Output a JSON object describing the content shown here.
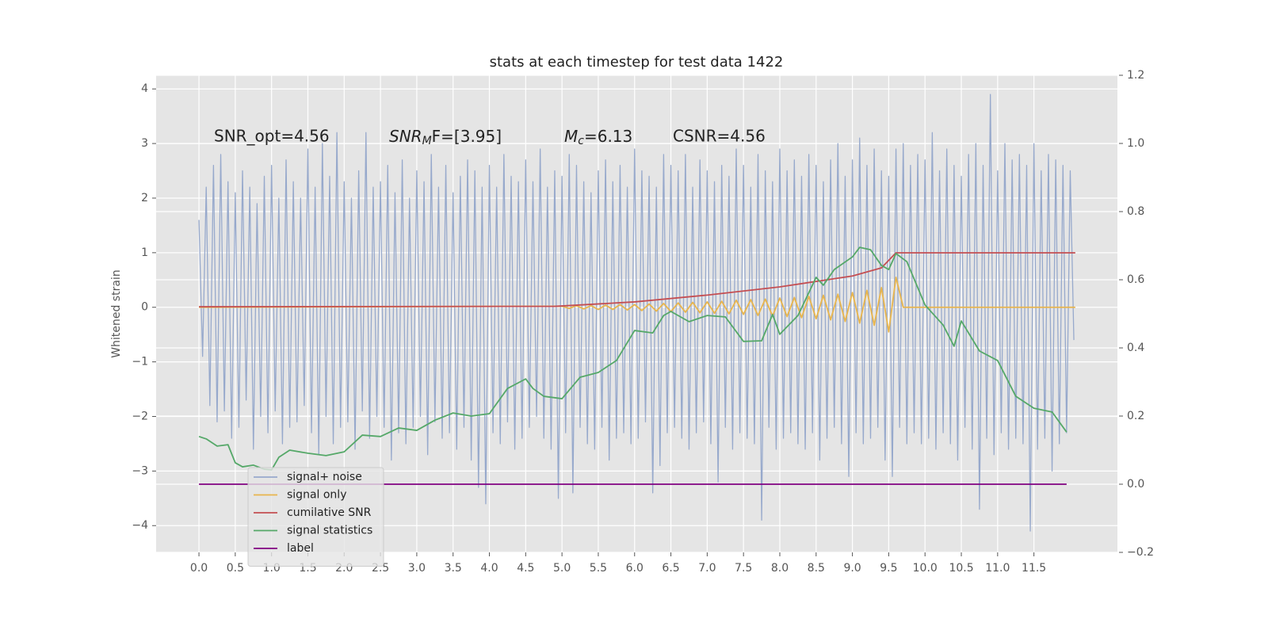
{
  "chart_data": {
    "type": "line",
    "title": "stats at each timestep for test data 1422",
    "ylabel": "Whitened strain",
    "xlim": [
      -0.59,
      12.65
    ],
    "ylim": [
      -4.49,
      4.25
    ],
    "y2lim": [
      -0.2,
      1.2
    ],
    "grid": true,
    "legend": "lower left",
    "xticks": [
      {
        "value": 0,
        "label": "0.0"
      },
      0.5,
      {
        "value": 1,
        "label": "1.0"
      },
      1.5,
      {
        "value": 2,
        "label": "2.0"
      },
      2.5,
      {
        "value": 3,
        "label": "3.0"
      },
      3.5,
      {
        "value": 4,
        "label": "4.0"
      },
      4.5,
      {
        "value": 5,
        "label": "5.0"
      },
      5.5,
      {
        "value": 6,
        "label": "6.0"
      },
      6.5,
      {
        "value": 7,
        "label": "7.0"
      },
      7.5,
      {
        "value": 8,
        "label": "8.0"
      },
      8.5,
      {
        "value": 9,
        "label": "9.0"
      },
      9.5,
      {
        "value": 10,
        "label": "10.0"
      },
      10.5,
      {
        "value": 11,
        "label": "11.0"
      },
      11.5
    ],
    "yticks": [
      {
        "value": -4,
        "label": "−4"
      },
      {
        "value": -3,
        "label": "−3"
      },
      {
        "value": -2,
        "label": "−2"
      },
      {
        "value": -1,
        "label": "−1"
      },
      0,
      1,
      2,
      3,
      4
    ],
    "y2ticks": [
      {
        "value": -0.2,
        "label": "−0.2"
      },
      {
        "value": 0,
        "label": "0.0"
      },
      0.2,
      0.4,
      0.6,
      0.8,
      {
        "value": 1,
        "label": "1.0"
      },
      1.2
    ],
    "annotations": [
      {
        "text": "SNR_opt=4.56"
      },
      {
        "base": "SNR",
        "sub": "M",
        "rest": "F=[3.95]"
      },
      {
        "base": "M",
        "sub": "c",
        "rest": "=6.13"
      },
      {
        "text": "CSNR=4.56"
      }
    ],
    "series": [
      {
        "name": "signal+ noise",
        "color": "#97a9cc",
        "axis": "y",
        "x": [
          0,
          0.05,
          0.1,
          0.15,
          0.2,
          0.25,
          0.3,
          0.35,
          0.4,
          0.45,
          0.5,
          0.55,
          0.6,
          0.65,
          0.7,
          0.75,
          0.8,
          0.85,
          0.9,
          0.95,
          1,
          1.05,
          1.1,
          1.15,
          1.2,
          1.25,
          1.3,
          1.35,
          1.4,
          1.45,
          1.5,
          1.55,
          1.6,
          1.65,
          1.7,
          1.75,
          1.8,
          1.85,
          1.9,
          1.95,
          2,
          2.05,
          2.1,
          2.15,
          2.2,
          2.25,
          2.3,
          2.35,
          2.4,
          2.45,
          2.5,
          2.55,
          2.6,
          2.65,
          2.7,
          2.75,
          2.8,
          2.85,
          2.9,
          2.95,
          3,
          3.05,
          3.1,
          3.15,
          3.2,
          3.25,
          3.3,
          3.35,
          3.4,
          3.45,
          3.5,
          3.55,
          3.6,
          3.65,
          3.7,
          3.75,
          3.8,
          3.85,
          3.9,
          3.95,
          4,
          4.05,
          4.1,
          4.15,
          4.2,
          4.25,
          4.3,
          4.35,
          4.4,
          4.45,
          4.5,
          4.55,
          4.6,
          4.65,
          4.7,
          4.75,
          4.8,
          4.85,
          4.9,
          4.95,
          5,
          5.05,
          5.1,
          5.15,
          5.2,
          5.25,
          5.3,
          5.35,
          5.4,
          5.45,
          5.5,
          5.55,
          5.6,
          5.65,
          5.7,
          5.75,
          5.8,
          5.85,
          5.9,
          5.95,
          6,
          6.05,
          6.1,
          6.15,
          6.2,
          6.25,
          6.3,
          6.35,
          6.4,
          6.45,
          6.5,
          6.55,
          6.6,
          6.65,
          6.7,
          6.75,
          6.8,
          6.85,
          6.9,
          6.95,
          7,
          7.05,
          7.1,
          7.15,
          7.2,
          7.25,
          7.3,
          7.35,
          7.4,
          7.45,
          7.5,
          7.55,
          7.6,
          7.65,
          7.7,
          7.75,
          7.8,
          7.85,
          7.9,
          7.95,
          8,
          8.05,
          8.1,
          8.15,
          8.2,
          8.25,
          8.3,
          8.35,
          8.4,
          8.45,
          8.5,
          8.55,
          8.6,
          8.65,
          8.7,
          8.75,
          8.8,
          8.85,
          8.9,
          8.95,
          9,
          9.05,
          9.1,
          9.15,
          9.2,
          9.25,
          9.3,
          9.35,
          9.4,
          9.45,
          9.5,
          9.55,
          9.6,
          9.65,
          9.7,
          9.75,
          9.8,
          9.85,
          9.9,
          9.95,
          10,
          10.05,
          10.1,
          10.15,
          10.2,
          10.25,
          10.3,
          10.35,
          10.4,
          10.45,
          10.5,
          10.55,
          10.6,
          10.65,
          10.7,
          10.75,
          10.8,
          10.85,
          10.9,
          10.95,
          11,
          11.05,
          11.1,
          11.15,
          11.2,
          11.25,
          11.3,
          11.35,
          11.4,
          11.45,
          11.5,
          11.55,
          11.6,
          11.65,
          11.7,
          11.75,
          11.8,
          11.85,
          11.9,
          11.95,
          12,
          12.05
        ],
        "values": [
          1.6,
          -0.9,
          2.2,
          -1.8,
          2.6,
          -2.1,
          2.8,
          -1.9,
          2.3,
          -2.4,
          2.1,
          -2.2,
          2.5,
          -1.7,
          2.2,
          -2.6,
          1.9,
          -2.0,
          2.4,
          -2.3,
          2.6,
          -1.9,
          2.0,
          -2.5,
          2.7,
          -2.2,
          2.3,
          -2.1,
          2.0,
          -1.8,
          2.9,
          -2.3,
          2.2,
          -2.7,
          3.0,
          -2.0,
          2.4,
          -2.5,
          3.2,
          -2.2,
          2.3,
          -2.1,
          2.0,
          -2.6,
          2.5,
          -1.9,
          3.2,
          -2.4,
          2.2,
          -2.0,
          2.3,
          -2.2,
          2.6,
          -2.8,
          2.1,
          -2.3,
          2.7,
          -2.5,
          2.0,
          -2.2,
          2.5,
          -2.0,
          2.3,
          -2.7,
          2.8,
          -2.1,
          2.2,
          -2.4,
          2.6,
          -2.3,
          2.1,
          -2.6,
          2.4,
          -2.2,
          2.7,
          -2.8,
          2.5,
          -3.3,
          2.2,
          -3.6,
          2.6,
          -2.3,
          2.2,
          -2.5,
          2.8,
          -2.1,
          2.4,
          -2.6,
          2.3,
          -2.4,
          2.7,
          -2.2,
          2.3,
          -2.0,
          2.9,
          -2.4,
          2.2,
          -2.6,
          2.5,
          -3.5,
          2.4,
          -2.3,
          2.8,
          -3.4,
          2.6,
          -2.2,
          2.3,
          -2.5,
          2.1,
          -2.6,
          2.5,
          -2.2,
          2.7,
          -2.8,
          2.3,
          -2.4,
          2.6,
          -2.3,
          2.2,
          -2.5,
          2.9,
          -2.4,
          2.5,
          -2.1,
          2.4,
          -3.4,
          2.2,
          -2.9,
          2.8,
          -2.3,
          2.6,
          -2.2,
          2.5,
          -2.4,
          2.8,
          -2.6,
          2.2,
          -2.3,
          2.7,
          -2.1,
          2.5,
          -2.5,
          2.3,
          -3.2,
          2.6,
          -2.2,
          2.4,
          -2.6,
          2.9,
          -2.3,
          2.6,
          -2.4,
          2.2,
          -2.5,
          2.8,
          -3.9,
          2.5,
          -2.2,
          2.3,
          -2.6,
          2.9,
          -2.4,
          2.5,
          -2.3,
          2.7,
          -2.5,
          2.4,
          -2.6,
          2.8,
          -2.3,
          2.6,
          -2.8,
          2.3,
          -2.4,
          2.7,
          -2.2,
          3.0,
          -2.5,
          2.4,
          -3.1,
          2.7,
          -2.3,
          3.1,
          -2.5,
          2.6,
          -2.4,
          2.9,
          -2.2,
          2.5,
          -2.8,
          2.4,
          -3.1,
          2.9,
          -2.2,
          3.0,
          -2.5,
          2.6,
          -2.3,
          2.8,
          -2.5,
          2.7,
          -2.4,
          3.2,
          -2.6,
          2.5,
          -2.3,
          2.9,
          -2.5,
          2.6,
          -2.8,
          2.4,
          -2.2,
          2.8,
          -2.6,
          3.0,
          -3.7,
          2.6,
          -2.4,
          3.9,
          -2.7,
          2.5,
          -2.3,
          3.0,
          -2.6,
          2.7,
          -2.4,
          2.8,
          -2.5,
          2.6,
          -4.1,
          3.0,
          -2.6,
          2.5,
          -2.4,
          2.8,
          -3.0,
          2.7,
          -2.5,
          2.6,
          -2.3,
          2.5,
          -0.6
        ]
      },
      {
        "name": "signal only",
        "color": "#e8b54d",
        "axis": "y",
        "x": [
          0,
          5,
          5.1,
          5.2,
          5.3,
          5.4,
          5.5,
          5.6,
          5.7,
          5.8,
          5.9,
          6,
          6.1,
          6.2,
          6.3,
          6.4,
          6.5,
          6.6,
          6.7,
          6.8,
          6.9,
          7,
          7.1,
          7.2,
          7.3,
          7.4,
          7.5,
          7.6,
          7.7,
          7.8,
          7.9,
          8,
          8.1,
          8.2,
          8.3,
          8.4,
          8.5,
          8.6,
          8.7,
          8.8,
          8.9,
          9,
          9.1,
          9.2,
          9.3,
          9.4,
          9.5,
          9.6,
          9.7,
          12.07
        ],
        "values": [
          0,
          0.02,
          -0.02,
          0.03,
          -0.03,
          0.03,
          -0.04,
          0.04,
          -0.04,
          0.05,
          -0.05,
          0.05,
          -0.06,
          0.06,
          -0.07,
          0.07,
          -0.08,
          0.08,
          -0.09,
          0.09,
          -0.1,
          0.1,
          -0.11,
          0.11,
          -0.12,
          0.13,
          -0.13,
          0.14,
          -0.15,
          0.15,
          -0.16,
          0.17,
          -0.17,
          0.18,
          -0.19,
          0.2,
          -0.21,
          0.22,
          -0.23,
          0.24,
          -0.26,
          0.27,
          -0.29,
          0.31,
          -0.33,
          0.36,
          -0.45,
          0.55,
          0,
          0
        ]
      },
      {
        "name": "cumilative SNR",
        "color": "#c44e52",
        "axis": "y2",
        "x": [
          0,
          4.9,
          6,
          7,
          8,
          9,
          9.4,
          9.6,
          12.07
        ],
        "values": [
          0.521,
          0.522,
          0.535,
          0.555,
          0.579,
          0.611,
          0.635,
          0.679,
          0.679
        ]
      },
      {
        "name": "signal statistics",
        "color": "#55a868",
        "axis": "y2",
        "x": [
          0,
          0.1,
          0.25,
          0.4,
          0.5,
          0.6,
          0.75,
          0.9,
          1,
          1.1,
          1.25,
          1.5,
          1.75,
          2,
          2.25,
          2.5,
          2.75,
          3,
          3.25,
          3.5,
          3.75,
          4,
          4.25,
          4.5,
          4.6,
          4.75,
          5,
          5.25,
          5.5,
          5.75,
          6,
          6.25,
          6.4,
          6.5,
          6.75,
          7,
          7.25,
          7.5,
          7.75,
          7.9,
          8,
          8.25,
          8.5,
          8.6,
          8.75,
          9,
          9.1,
          9.25,
          9.4,
          9.5,
          9.6,
          9.75,
          10,
          10.25,
          10.4,
          10.5,
          10.75,
          11,
          11.25,
          11.5,
          11.75,
          11.95
        ],
        "values": [
          0.14,
          0.133,
          0.112,
          0.116,
          0.063,
          0.051,
          0.056,
          0.044,
          0.042,
          0.079,
          0.1,
          0.091,
          0.084,
          0.095,
          0.144,
          0.14,
          0.165,
          0.158,
          0.188,
          0.209,
          0.2,
          0.207,
          0.281,
          0.309,
          0.281,
          0.258,
          0.251,
          0.314,
          0.328,
          0.363,
          0.451,
          0.444,
          0.495,
          0.507,
          0.477,
          0.495,
          0.491,
          0.419,
          0.421,
          0.498,
          0.44,
          0.495,
          0.607,
          0.584,
          0.63,
          0.667,
          0.695,
          0.688,
          0.642,
          0.63,
          0.677,
          0.653,
          0.526,
          0.467,
          0.405,
          0.479,
          0.391,
          0.363,
          0.258,
          0.223,
          0.212,
          0.153
        ]
      },
      {
        "name": "label",
        "color": "#800080",
        "axis": "y2",
        "x": [
          0,
          11.95
        ],
        "values": [
          0,
          0
        ]
      }
    ]
  }
}
